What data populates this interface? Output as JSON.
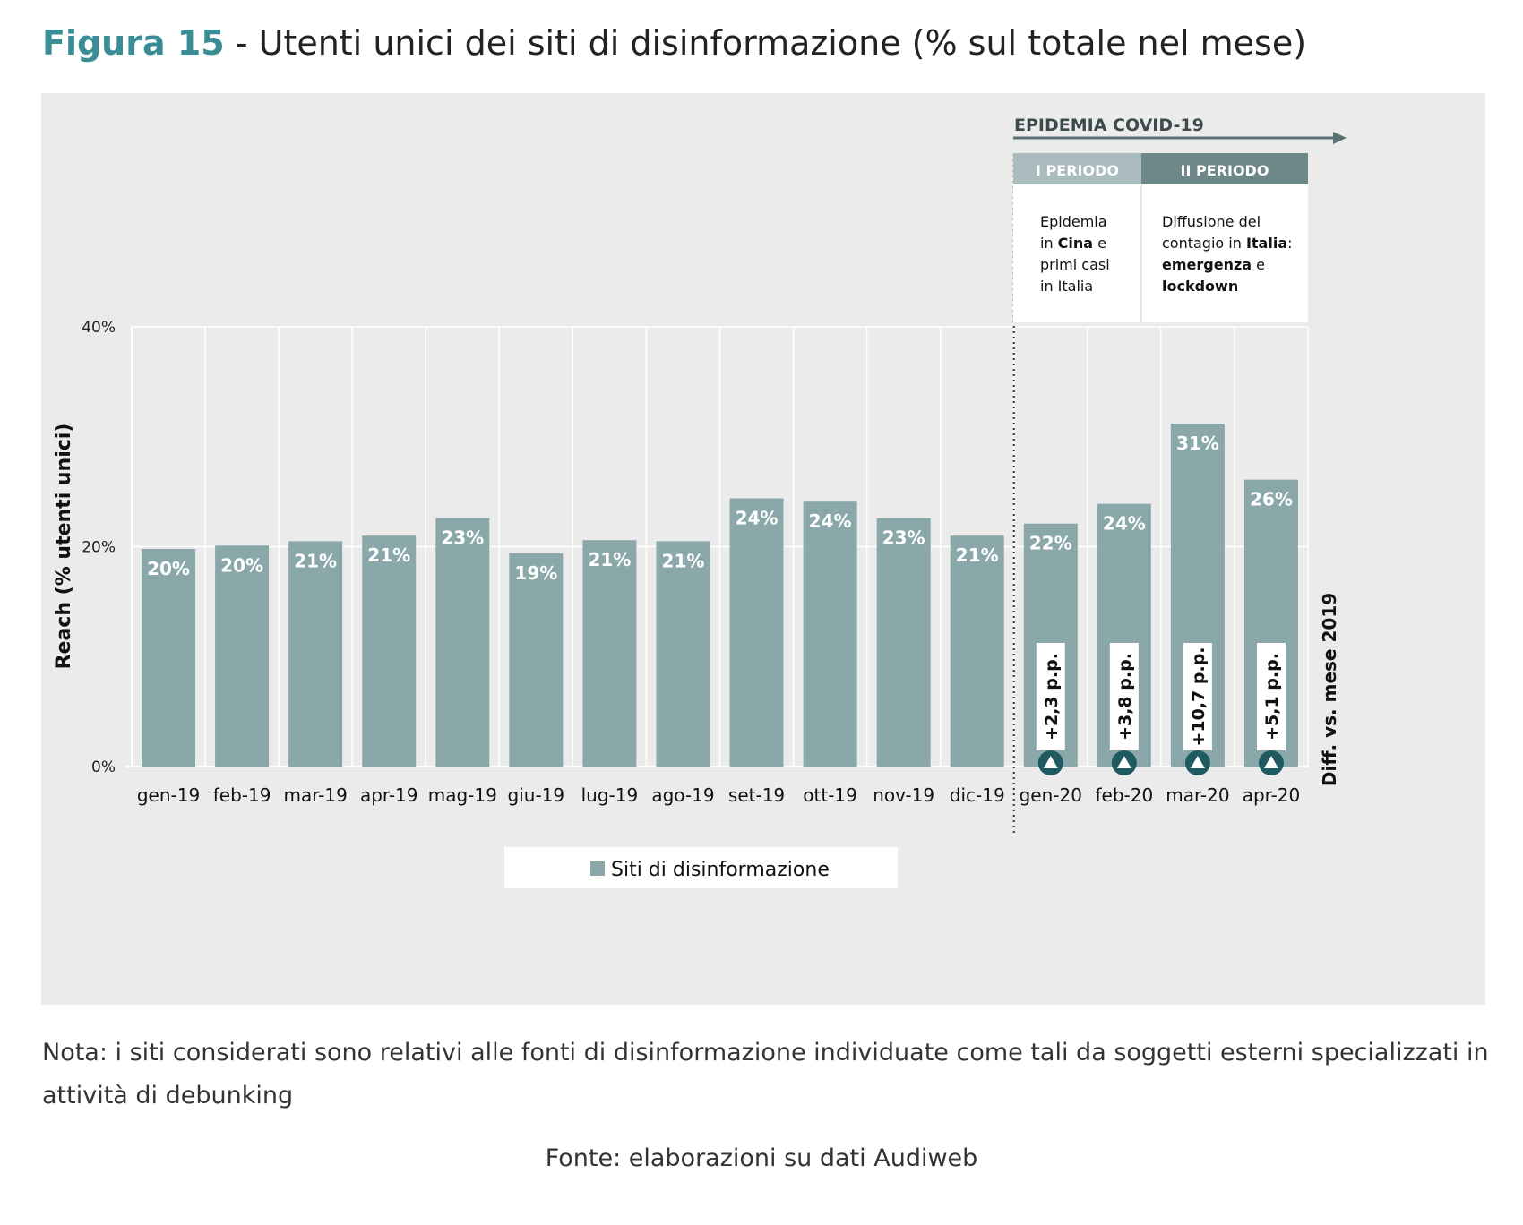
{
  "figure": {
    "number": "Figura 15",
    "separator": " - ",
    "title": "Utenti unici dei siti di disinformazione (% sul totale nel mese)"
  },
  "covid": {
    "header": "EPIDEMIA COVID-19",
    "period1": {
      "label": "I PERIODO",
      "lines": [
        [
          {
            "t": "Epidemia",
            "b": false
          }
        ],
        [
          {
            "t": "in ",
            "b": false
          },
          {
            "t": "Cina",
            "b": true
          },
          {
            "t": " e",
            "b": false
          }
        ],
        [
          {
            "t": "primi casi",
            "b": false
          }
        ],
        [
          {
            "t": "in Italia",
            "b": false
          }
        ]
      ]
    },
    "period2": {
      "label": "II PERIODO",
      "lines": [
        [
          {
            "t": "Diffusione del",
            "b": false
          }
        ],
        [
          {
            "t": "contagio in ",
            "b": false
          },
          {
            "t": "Italia",
            "b": true
          },
          {
            "t": ":",
            "b": false
          }
        ],
        [
          {
            "t": "emergenza",
            "b": true
          },
          {
            "t": " e",
            "b": false
          }
        ],
        [
          {
            "t": "lockdown",
            "b": true
          }
        ]
      ]
    },
    "diff_axis_label": "Diff. vs. mese 2019"
  },
  "colors": {
    "bar": "#8aa8a9",
    "accent": "#3a8d94",
    "period1_header": "#aabcbd",
    "period2_header": "#6e8788",
    "arrow": "#5b7072",
    "marker": "#1f5a60"
  },
  "chart_data": {
    "type": "bar",
    "ylabel": "Reach (% utenti unici)",
    "ylim": [
      0,
      40
    ],
    "yticks": [
      0,
      20,
      40
    ],
    "yticklabels": [
      "0%",
      "20%",
      "40%"
    ],
    "grid": true,
    "legend": {
      "position": "bottom-center",
      "entries": [
        "Siti di disinformazione"
      ]
    },
    "categories": [
      "gen-19",
      "feb-19",
      "mar-19",
      "apr-19",
      "mag-19",
      "giu-19",
      "lug-19",
      "ago-19",
      "set-19",
      "ott-19",
      "nov-19",
      "dic-19",
      "gen-20",
      "feb-20",
      "mar-20",
      "apr-20"
    ],
    "series": [
      {
        "name": "Siti di disinformazione",
        "values": [
          19.8,
          20.1,
          20.5,
          21.0,
          22.6,
          19.4,
          20.6,
          20.5,
          24.4,
          24.1,
          22.6,
          21.0,
          22.1,
          23.9,
          31.2,
          26.1
        ],
        "labels": [
          "20%",
          "20%",
          "21%",
          "21%",
          "23%",
          "19%",
          "21%",
          "21%",
          "24%",
          "24%",
          "23%",
          "21%",
          "22%",
          "24%",
          "31%",
          "26%"
        ]
      }
    ],
    "diff_vs_2019": {
      "categories": [
        "gen-20",
        "feb-20",
        "mar-20",
        "apr-20"
      ],
      "values": [
        2.3,
        3.8,
        10.7,
        5.1
      ],
      "labels": [
        "+2,3 p.p.",
        "+3,8 p.p.",
        "+10,7 p.p.",
        "+5,1 p.p."
      ]
    }
  },
  "footer": {
    "note": "Nota: i siti considerati sono relativi alle fonti di disinformazione individuate come tali da soggetti esterni specializzati in attività di debunking",
    "source": "Fonte: elaborazioni su dati Audiweb"
  }
}
